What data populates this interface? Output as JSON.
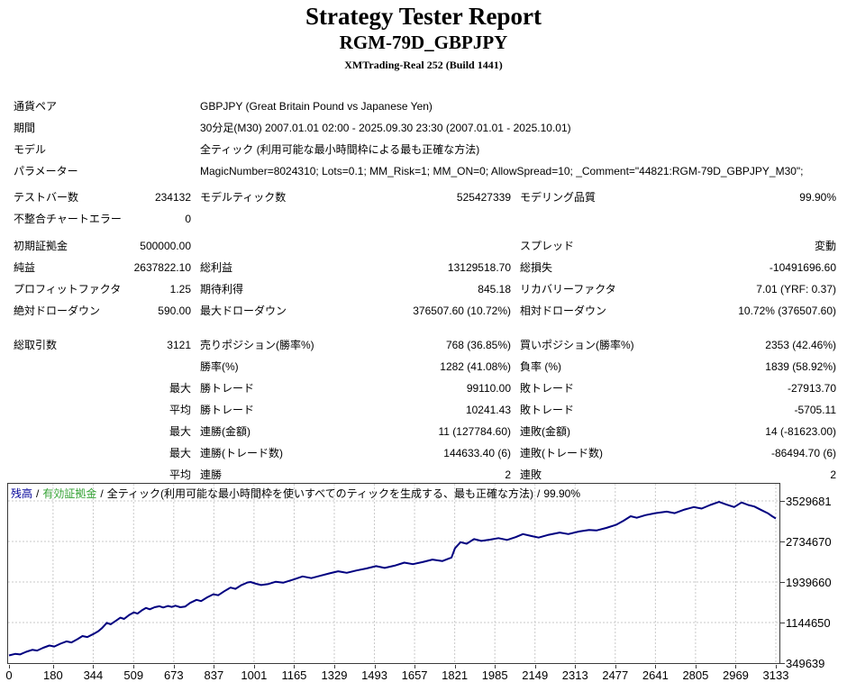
{
  "report": {
    "title": "Strategy Tester Report",
    "subtitle": "RGM-79D_GBPJPY",
    "build": "XMTrading-Real 252 (Build 1441)"
  },
  "info_rows": [
    {
      "label": "通貨ペア",
      "value": "GBPJPY (Great Britain Pound vs Japanese Yen)"
    },
    {
      "label": "期間",
      "value": "30分足(M30) 2007.01.01 02:00 - 2025.09.30 23:30 (2007.01.01 - 2025.10.01)"
    },
    {
      "label": "モデル",
      "value": "全ティック (利用可能な最小時間枠による最も正確な方法)"
    },
    {
      "label": "パラメーター",
      "value": "MagicNumber=8024310; Lots=0.1; MM_Risk=1; MM_ON=0; AllowSpread=10; _Comment=\"44821:RGM-79D_GBPJPY_M30\";"
    }
  ],
  "stat_groups": [
    {
      "cls": "grpA",
      "rows": [
        [
          "テストバー数",
          "234132",
          "モデルティック数",
          "525427339",
          "モデリング品質",
          "99.90%"
        ],
        [
          "不整合チャートエラー",
          "0",
          "",
          "",
          "",
          ""
        ]
      ]
    },
    {
      "cls": "grpB",
      "rows": [
        [
          "初期証拠金",
          "500000.00",
          "",
          "",
          "スプレッド",
          "変動"
        ],
        [
          "純益",
          "2637822.10",
          "総利益",
          "13129518.70",
          "総損失",
          "-10491696.60"
        ],
        [
          "プロフィットファクタ",
          "1.25",
          "期待利得",
          "845.18",
          "リカバリーファクタ",
          "7.01 (YRF: 0.37)"
        ],
        [
          "絶対ドローダウン",
          "590.00",
          "最大ドローダウン",
          "376507.60 (10.72%)",
          "相対ドローダウン",
          "10.72% (376507.60)"
        ]
      ]
    },
    {
      "cls": "grpC",
      "rows": [
        [
          "総取引数",
          "3121",
          "売りポジション(勝率%)",
          "768 (36.85%)",
          "買いポジション(勝率%)",
          "2353 (42.46%)"
        ],
        [
          "",
          "",
          "勝率(%)",
          "1282 (41.08%)",
          "負率 (%)",
          "1839 (58.92%)"
        ],
        [
          "",
          "最大",
          "勝トレード",
          "99110.00",
          "敗トレード",
          "-27913.70"
        ],
        [
          "",
          "平均",
          "勝トレード",
          "10241.43",
          "敗トレード",
          "-5705.11"
        ],
        [
          "",
          "最大",
          "連勝(金額)",
          "11 (127784.60)",
          "連敗(金額)",
          "14 (-81623.00)"
        ],
        [
          "",
          "最大",
          "連勝(トレード数)",
          "144633.40 (6)",
          "連敗(トレード数)",
          "-86494.70 (6)"
        ],
        [
          "",
          "平均",
          "連勝",
          "2",
          "連敗",
          "2"
        ]
      ]
    }
  ],
  "chart_data": {
    "type": "line",
    "legend_segments": [
      {
        "text": "残高",
        "color": "#000099"
      },
      {
        "text": "/",
        "color": "#000000"
      },
      {
        "text": "有効証拠金",
        "color": "#33a133"
      },
      {
        "text": "/",
        "color": "#000000"
      },
      {
        "text": "全ティック(利用可能な最小時間枠を使いすべてのティックを生成する、最も正確な方法)",
        "color": "#000000"
      },
      {
        "text": "/",
        "color": "#000000"
      },
      {
        "text": "99.90%",
        "color": "#000000"
      }
    ],
    "x_ticks": [
      0,
      180,
      344,
      509,
      673,
      837,
      1001,
      1165,
      1329,
      1493,
      1657,
      1821,
      1985,
      2149,
      2313,
      2477,
      2641,
      2805,
      2969,
      3133
    ],
    "y_ticks": [
      349639,
      1144650,
      1939660,
      2734670,
      3529681
    ],
    "grid_color": "#c9c9c9",
    "series": [
      {
        "name": "残高",
        "color": "#000080",
        "points": [
          [
            0,
            500000
          ],
          [
            25,
            530000
          ],
          [
            45,
            520000
          ],
          [
            70,
            570000
          ],
          [
            95,
            610000
          ],
          [
            115,
            595000
          ],
          [
            140,
            650000
          ],
          [
            165,
            695000
          ],
          [
            185,
            675000
          ],
          [
            210,
            730000
          ],
          [
            235,
            775000
          ],
          [
            255,
            755000
          ],
          [
            280,
            820000
          ],
          [
            300,
            880000
          ],
          [
            320,
            860000
          ],
          [
            345,
            920000
          ],
          [
            365,
            975000
          ],
          [
            380,
            1035000
          ],
          [
            400,
            1140000
          ],
          [
            415,
            1110000
          ],
          [
            435,
            1175000
          ],
          [
            455,
            1240000
          ],
          [
            470,
            1215000
          ],
          [
            490,
            1290000
          ],
          [
            510,
            1345000
          ],
          [
            525,
            1320000
          ],
          [
            545,
            1390000
          ],
          [
            560,
            1430000
          ],
          [
            575,
            1405000
          ],
          [
            595,
            1445000
          ],
          [
            615,
            1465000
          ],
          [
            630,
            1440000
          ],
          [
            650,
            1470000
          ],
          [
            665,
            1450000
          ],
          [
            680,
            1475000
          ],
          [
            700,
            1445000
          ],
          [
            720,
            1460000
          ],
          [
            740,
            1530000
          ],
          [
            766,
            1590000
          ],
          [
            785,
            1565000
          ],
          [
            810,
            1640000
          ],
          [
            835,
            1700000
          ],
          [
            855,
            1680000
          ],
          [
            880,
            1760000
          ],
          [
            905,
            1830000
          ],
          [
            925,
            1805000
          ],
          [
            950,
            1880000
          ],
          [
            975,
            1930000
          ],
          [
            987,
            1940000
          ],
          [
            1010,
            1905000
          ],
          [
            1030,
            1880000
          ],
          [
            1060,
            1900000
          ],
          [
            1090,
            1945000
          ],
          [
            1120,
            1925000
          ],
          [
            1160,
            1985000
          ],
          [
            1200,
            2050000
          ],
          [
            1235,
            2015000
          ],
          [
            1270,
            2060000
          ],
          [
            1310,
            2110000
          ],
          [
            1345,
            2150000
          ],
          [
            1380,
            2120000
          ],
          [
            1420,
            2165000
          ],
          [
            1460,
            2205000
          ],
          [
            1500,
            2250000
          ],
          [
            1535,
            2215000
          ],
          [
            1575,
            2260000
          ],
          [
            1615,
            2320000
          ],
          [
            1650,
            2290000
          ],
          [
            1690,
            2330000
          ],
          [
            1730,
            2380000
          ],
          [
            1770,
            2350000
          ],
          [
            1808,
            2420000
          ],
          [
            1822,
            2600000
          ],
          [
            1845,
            2720000
          ],
          [
            1870,
            2690000
          ],
          [
            1900,
            2780000
          ],
          [
            1930,
            2745000
          ],
          [
            1965,
            2770000
          ],
          [
            2000,
            2800000
          ],
          [
            2035,
            2765000
          ],
          [
            2070,
            2820000
          ],
          [
            2100,
            2880000
          ],
          [
            2135,
            2840000
          ],
          [
            2164,
            2810000
          ],
          [
            2200,
            2860000
          ],
          [
            2250,
            2910000
          ],
          [
            2285,
            2880000
          ],
          [
            2330,
            2930000
          ],
          [
            2370,
            2960000
          ],
          [
            2400,
            2950000
          ],
          [
            2440,
            3000000
          ],
          [
            2480,
            3060000
          ],
          [
            2510,
            3140000
          ],
          [
            2540,
            3230000
          ],
          [
            2565,
            3200000
          ],
          [
            2600,
            3250000
          ],
          [
            2640,
            3290000
          ],
          [
            2687,
            3320000
          ],
          [
            2720,
            3290000
          ],
          [
            2760,
            3360000
          ],
          [
            2798,
            3410000
          ],
          [
            2830,
            3380000
          ],
          [
            2865,
            3450000
          ],
          [
            2901,
            3510000
          ],
          [
            2930,
            3460000
          ],
          [
            2963,
            3410000
          ],
          [
            2993,
            3500000
          ],
          [
            3020,
            3450000
          ],
          [
            3045,
            3420000
          ],
          [
            3074,
            3350000
          ],
          [
            3100,
            3290000
          ],
          [
            3118,
            3230000
          ],
          [
            3133,
            3185000
          ]
        ]
      }
    ]
  }
}
